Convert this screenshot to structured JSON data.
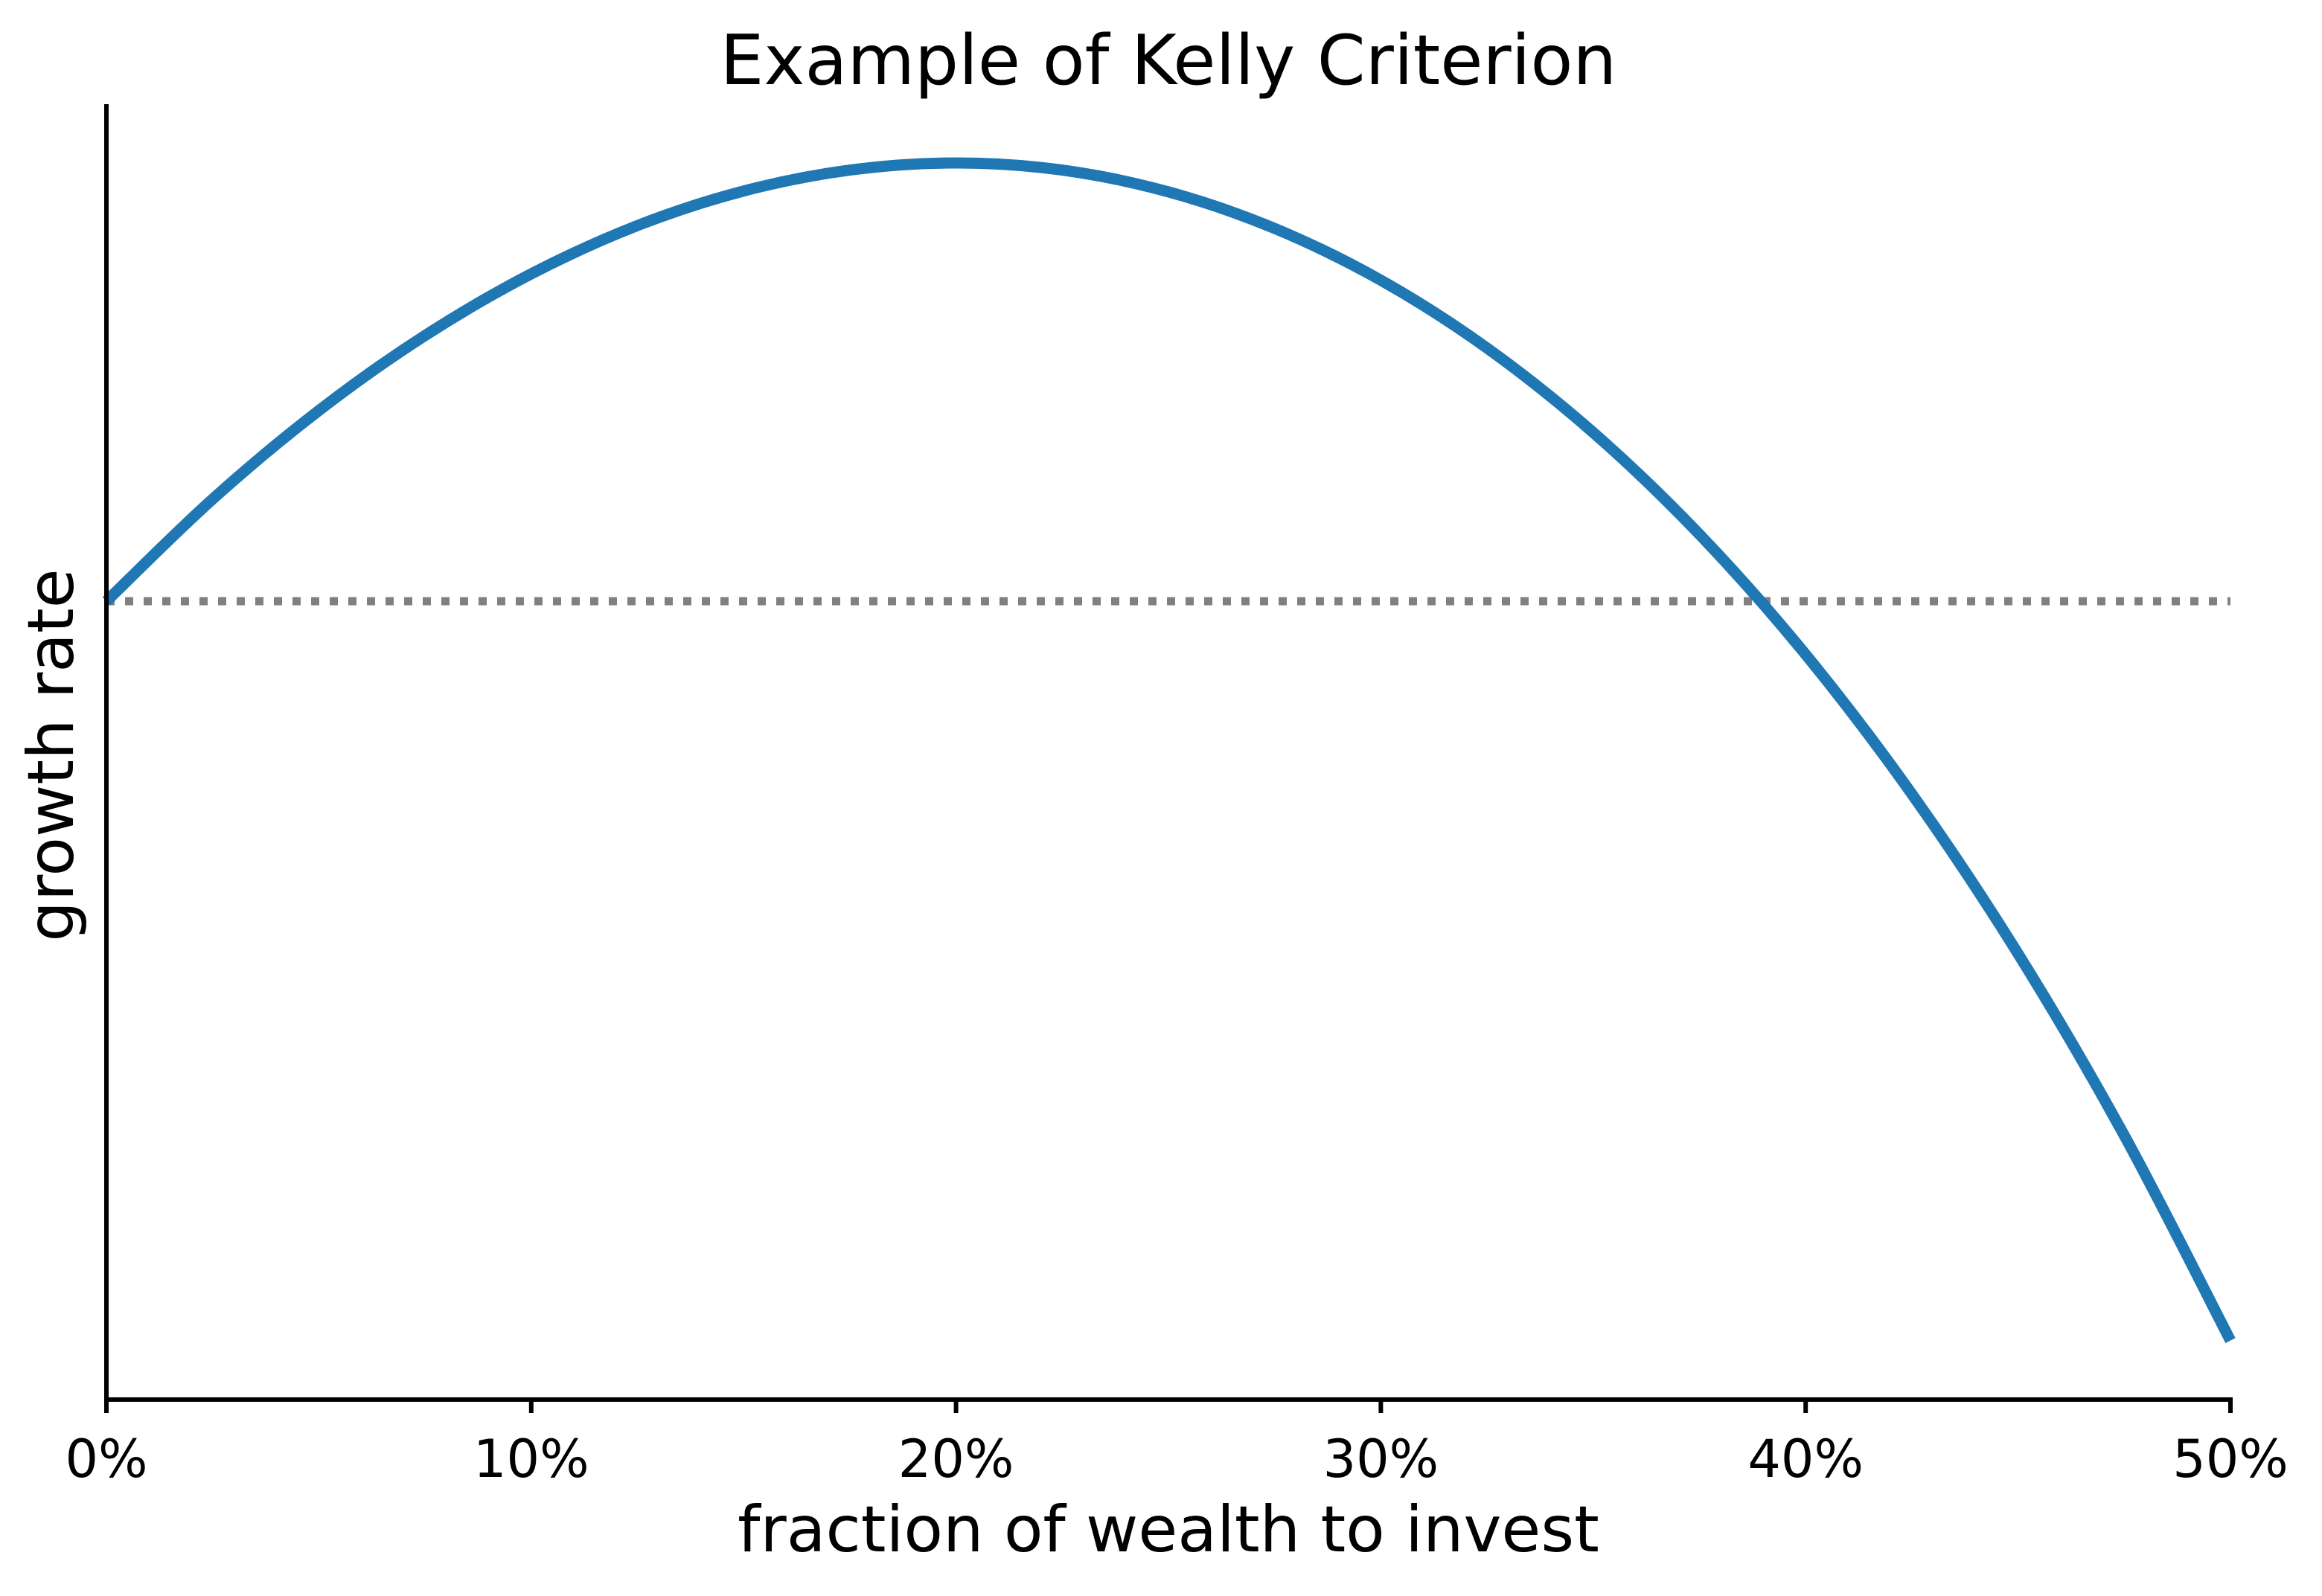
{
  "figure": {
    "background": "#ffffff",
    "text_color": "#000000",
    "spine_color": "#000000"
  },
  "chart_data": {
    "type": "line",
    "title": "Example of Kelly Criterion",
    "xlabel": "fraction of wealth to invest",
    "ylabel": "growth rate",
    "x_tick_labels": [
      "0%",
      "10%",
      "20%",
      "30%",
      "40%",
      "50%"
    ],
    "x_tick_values": [
      0,
      0.1,
      0.2,
      0.3,
      0.4,
      0.5
    ],
    "xlim": [
      0,
      0.5
    ],
    "ylim": [
      -0.03669,
      0.02284
    ],
    "grid": false,
    "legend": false,
    "y_tick_labels": [],
    "series": [
      {
        "name": "growth-rate-curve",
        "color": "#1f77b4",
        "line_width": 15,
        "line_style": "solid",
        "x": [
          0.0,
          0.025,
          0.05,
          0.075,
          0.1,
          0.125,
          0.15,
          0.175,
          0.2,
          0.225,
          0.25,
          0.275,
          0.3,
          0.325,
          0.35,
          0.375,
          0.4,
          0.425,
          0.45,
          0.475,
          0.5
        ],
        "y": [
          0.0,
          0.00469,
          0.00876,
          0.01221,
          0.01504,
          0.01726,
          0.01885,
          0.01981,
          0.02014,
          0.01981,
          0.01881,
          0.01713,
          0.01475,
          0.01163,
          0.00775,
          0.00307,
          -0.00245,
          -0.00886,
          -0.0162,
          -0.02455,
          -0.03398
        ]
      },
      {
        "name": "zero-growth-reference-line",
        "color": "#808080",
        "line_width": 11,
        "line_style": "dotted",
        "y_constant": 0
      }
    ]
  }
}
